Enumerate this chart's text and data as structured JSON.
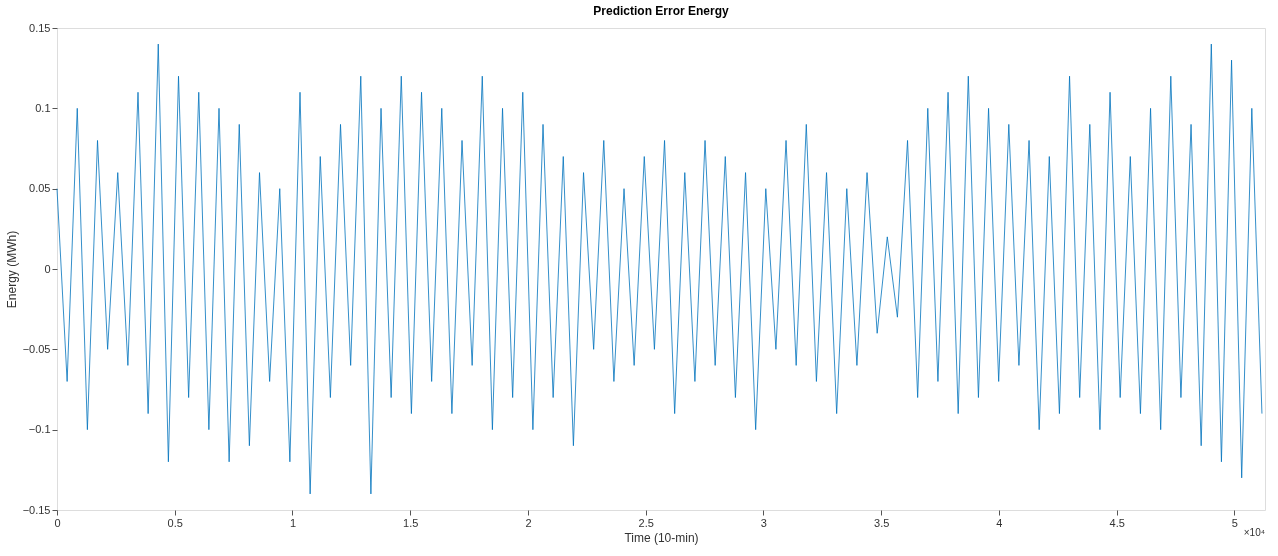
{
  "chart_data": {
    "type": "line",
    "title": "Prediction Error Energy",
    "xlabel": "Time (10-min)",
    "ylabel": "Energy (MWh)",
    "annotations": [
      "×10⁴"
    ],
    "x": [
      0,
      0.043,
      0.086,
      0.129,
      0.172,
      0.215,
      0.258,
      0.301,
      0.344,
      0.387,
      0.43,
      0.473,
      0.516,
      0.559,
      0.602,
      0.645,
      0.688,
      0.731,
      0.774,
      0.817,
      0.86,
      0.903,
      0.946,
      0.989,
      1.032,
      1.075,
      1.118,
      1.161,
      1.204,
      1.247,
      1.29,
      1.333,
      1.376,
      1.419,
      1.462,
      1.505,
      1.548,
      1.591,
      1.634,
      1.677,
      1.72,
      1.763,
      1.806,
      1.849,
      1.892,
      1.935,
      1.978,
      2.021,
      2.064,
      2.107,
      2.15,
      2.193,
      2.236,
      2.279,
      2.322,
      2.365,
      2.408,
      2.451,
      2.494,
      2.537,
      2.58,
      2.623,
      2.666,
      2.709,
      2.752,
      2.795,
      2.838,
      2.881,
      2.924,
      2.967,
      3.01,
      3.053,
      3.096,
      3.139,
      3.182,
      3.225,
      3.268,
      3.311,
      3.354,
      3.397,
      3.44,
      3.483,
      3.526,
      3.569,
      3.612,
      3.655,
      3.698,
      3.741,
      3.784,
      3.827,
      3.87,
      3.913,
      3.956,
      3.999,
      4.042,
      4.085,
      4.128,
      4.171,
      4.214,
      4.257,
      4.3,
      4.343,
      4.386,
      4.429,
      4.472,
      4.515,
      4.558,
      4.601,
      4.644,
      4.687,
      4.73,
      4.773,
      4.816,
      4.859,
      4.902,
      4.945,
      4.988,
      5.031,
      5.074,
      5.117
    ],
    "series": [
      {
        "color": "#0072bd",
        "values": [
          0.05,
          -0.07,
          0.1,
          -0.1,
          0.08,
          -0.05,
          0.06,
          -0.06,
          0.11,
          -0.09,
          0.14,
          -0.12,
          0.12,
          -0.08,
          0.11,
          -0.1,
          0.1,
          -0.12,
          0.09,
          -0.11,
          0.06,
          -0.07,
          0.05,
          -0.12,
          0.11,
          -0.14,
          0.07,
          -0.08,
          0.09,
          -0.06,
          0.12,
          -0.14,
          0.1,
          -0.08,
          0.12,
          -0.09,
          0.11,
          -0.07,
          0.1,
          -0.09,
          0.08,
          -0.06,
          0.12,
          -0.1,
          0.1,
          -0.08,
          0.11,
          -0.1,
          0.09,
          -0.08,
          0.07,
          -0.11,
          0.06,
          -0.05,
          0.08,
          -0.07,
          0.05,
          -0.06,
          0.07,
          -0.05,
          0.08,
          -0.09,
          0.06,
          -0.07,
          0.08,
          -0.06,
          0.07,
          -0.08,
          0.06,
          -0.1,
          0.05,
          -0.05,
          0.08,
          -0.06,
          0.09,
          -0.07,
          0.06,
          -0.09,
          0.05,
          -0.06,
          0.06,
          -0.04,
          0.02,
          -0.03,
          0.08,
          -0.08,
          0.1,
          -0.07,
          0.11,
          -0.09,
          0.12,
          -0.08,
          0.1,
          -0.07,
          0.09,
          -0.06,
          0.08,
          -0.1,
          0.07,
          -0.09,
          0.12,
          -0.08,
          0.09,
          -0.1,
          0.11,
          -0.08,
          0.07,
          -0.09,
          0.1,
          -0.1,
          0.12,
          -0.08,
          0.09,
          -0.11,
          0.14,
          -0.12,
          0.13,
          -0.13,
          0.1,
          -0.09
        ]
      }
    ],
    "xlim": [
      0,
      5.13
    ],
    "xticks": [
      0,
      0.5,
      1,
      1.5,
      2,
      2.5,
      3,
      3.5,
      4,
      4.5,
      5
    ],
    "ylim": [
      -0.15,
      0.15
    ],
    "yticks": [
      -0.15,
      -0.1,
      -0.05,
      0,
      0.05,
      0.1,
      0.15
    ],
    "grid": false,
    "marker": "none",
    "line_style": "solid"
  }
}
